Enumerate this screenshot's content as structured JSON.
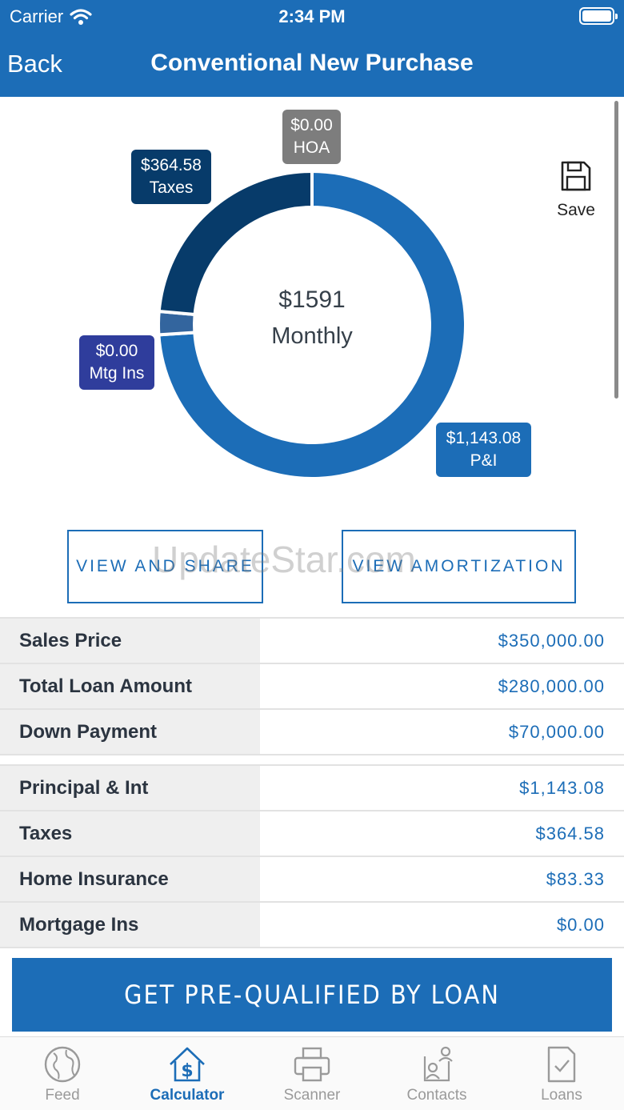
{
  "status_bar": {
    "carrier": "Carrier",
    "time": "2:34 PM"
  },
  "nav": {
    "back_label": "Back",
    "title": "Conventional New Purchase"
  },
  "chart": {
    "center_amount": "$1591",
    "center_label": "Monthly",
    "segments": [
      {
        "amount": "$1,143.08",
        "label": "P&I",
        "value": 1143.08,
        "color": "#1c6db7"
      },
      {
        "amount": "$0.00",
        "label": "Mtg Ins",
        "value": 0.0,
        "color": "#33659e"
      },
      {
        "amount": "$364.58",
        "label": "Taxes",
        "value": 364.58,
        "color": "#073b6a"
      },
      {
        "amount": "$0.00",
        "label": "HOA",
        "value": 0.0,
        "color": "#7d7d7d"
      }
    ]
  },
  "save": {
    "label": "Save",
    "icon": "floppy-disk-icon"
  },
  "actions": {
    "view_share": "VIEW AND SHARE",
    "view_amortization": "VIEW AMORTIZATION"
  },
  "watermark": "UpdateStar.com",
  "loan_table": [
    {
      "label": "Sales Price",
      "value": "$350,000.00"
    },
    {
      "label": "Total Loan Amount",
      "value": "$280,000.00"
    },
    {
      "label": "Down Payment",
      "value": "$70,000.00"
    }
  ],
  "payment_table": [
    {
      "label": "Principal & Int",
      "value": "$1,143.08"
    },
    {
      "label": "Taxes",
      "value": "$364.58"
    },
    {
      "label": "Home Insurance",
      "value": "$83.33"
    },
    {
      "label": "Mortgage Ins",
      "value": "$0.00"
    }
  ],
  "cta": {
    "label": "GET PRE-QUALIFIED BY LOAN"
  },
  "tabs": [
    {
      "label": "Feed",
      "icon": "globe-icon",
      "active": false
    },
    {
      "label": "Calculator",
      "icon": "house-dollar-icon",
      "active": true
    },
    {
      "label": "Scanner",
      "icon": "printer-icon",
      "active": false
    },
    {
      "label": "Contacts",
      "icon": "contacts-icon",
      "active": false
    },
    {
      "label": "Loans",
      "icon": "document-check-icon",
      "active": false
    }
  ],
  "colors": {
    "primary": "#1c6db7",
    "dark_navy": "#073b6a",
    "gray_label": "#7d7d7d",
    "indigo_label": "#2f3d9c"
  }
}
